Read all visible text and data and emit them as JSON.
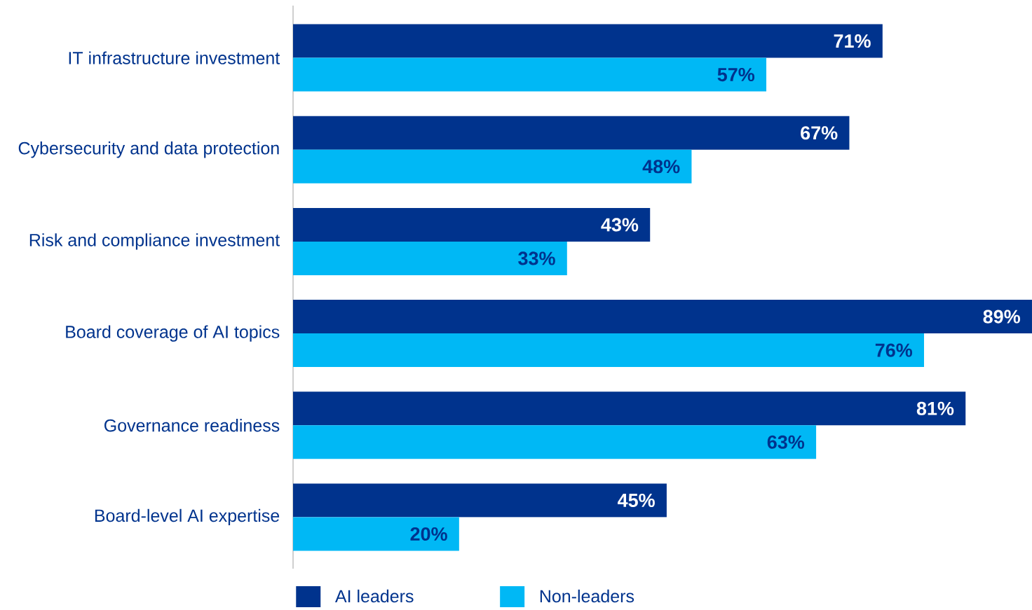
{
  "chart_data": {
    "type": "bar",
    "orientation": "horizontal",
    "legend": "bottom",
    "categories": [
      "IT infrastructure investment",
      "Cybersecurity and data protection",
      "Risk and compliance investment",
      "Board coverage of AI topics",
      "Governance readiness",
      "Board-level AI expertise"
    ],
    "xlim": [
      0,
      89
    ],
    "series": [
      {
        "name": "AI leaders",
        "color": "#00338d",
        "values": [
          71,
          67,
          43,
          89,
          81,
          45
        ],
        "value_labels": [
          "71%",
          "67%",
          "43%",
          "89%",
          "81%",
          "45%"
        ]
      },
      {
        "name": "Non-leaders",
        "color": "#00b8f5",
        "values": [
          57,
          48,
          33,
          76,
          63,
          20
        ],
        "value_labels": [
          "57%",
          "48%",
          "33%",
          "76%",
          "63%",
          "20%"
        ]
      }
    ]
  }
}
